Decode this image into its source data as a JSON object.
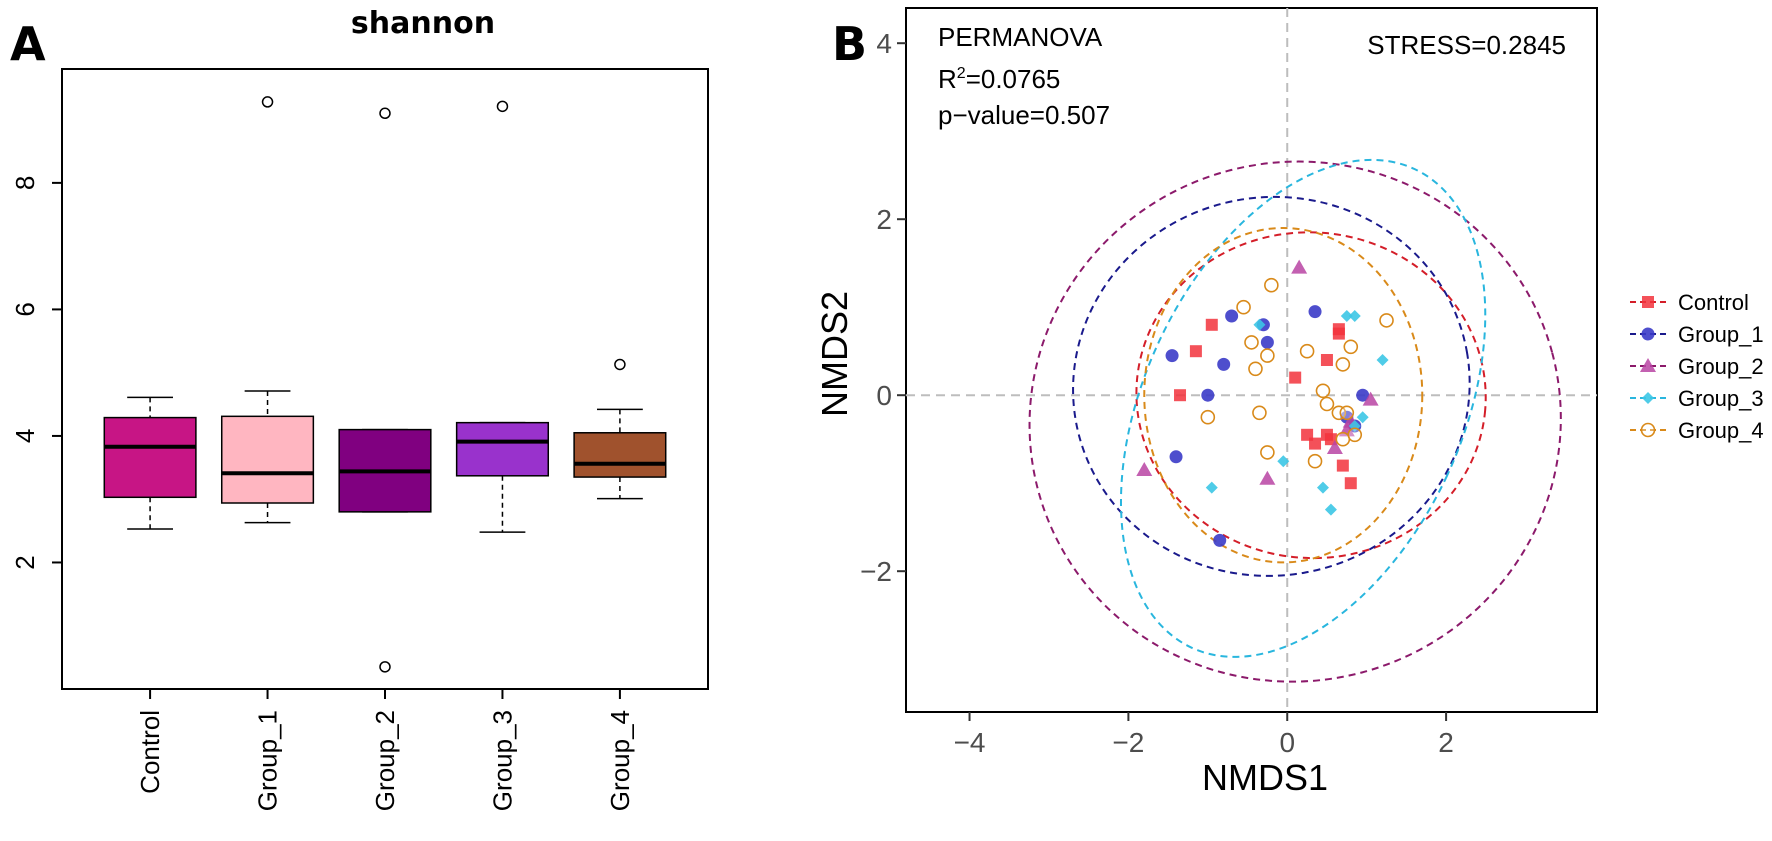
{
  "chart_data": [
    {
      "panel": "A",
      "type": "box",
      "title": "shannon",
      "xlabel": "",
      "ylabel": "",
      "ylim": [
        0,
        9.8
      ],
      "yticks": [
        2,
        4,
        6,
        8
      ],
      "yticklabels": [
        "2",
        "4",
        "6",
        "8"
      ],
      "categories": [
        "Control",
        "Group_1",
        "Group_2",
        "Group_3",
        "Group_4"
      ],
      "boxes": [
        {
          "category": "Control",
          "whisker_low": 2.53,
          "q1": 3.03,
          "median": 3.83,
          "q3": 4.29,
          "whisker_high": 4.61,
          "outliers": [],
          "color": "#c71585"
        },
        {
          "category": "Group_1",
          "whisker_low": 2.63,
          "q1": 2.94,
          "median": 3.41,
          "q3": 4.31,
          "whisker_high": 4.71,
          "outliers": [
            9.28
          ],
          "color": "#ffb6c1"
        },
        {
          "category": "Group_2",
          "whisker_low": 2.8,
          "q1": 2.8,
          "median": 3.44,
          "q3": 4.1,
          "whisker_high": 4.1,
          "outliers": [
            9.1,
            0.35
          ],
          "color": "#800080"
        },
        {
          "category": "Group_3",
          "whisker_low": 2.48,
          "q1": 3.37,
          "median": 3.91,
          "q3": 4.21,
          "whisker_high": 4.21,
          "outliers": [
            9.21
          ],
          "color": "#9932cc"
        },
        {
          "category": "Group_4",
          "whisker_low": 3.01,
          "q1": 3.35,
          "median": 3.56,
          "q3": 4.05,
          "whisker_high": 4.42,
          "outliers": [
            5.13
          ],
          "color": "#a0522d"
        }
      ]
    },
    {
      "panel": "B",
      "type": "scatter",
      "title": "",
      "xlabel": "NMDS1",
      "ylabel": "NMDS2",
      "xlim": [
        -4.8,
        3.9
      ],
      "ylim": [
        -3.6,
        4.4
      ],
      "xticks": [
        -4,
        -2,
        0,
        2
      ],
      "xticklabels": [
        "−4",
        "−2",
        "0",
        "2"
      ],
      "yticks": [
        -2,
        0,
        2,
        4
      ],
      "yticklabels": [
        "−2",
        "0",
        "2",
        "4"
      ],
      "annotations": {
        "permanova": "PERMANOVA",
        "r2_prefix": "R",
        "r2_sup": "2",
        "r2_value": "=0.0765",
        "pvalue": "p−value=0.507",
        "stress": "STRESS=0.2845"
      },
      "legend_position": "right",
      "series": [
        {
          "name": "Control",
          "color": "#f2323c",
          "marker": "square",
          "points": [
            [
              -1.35,
              0
            ],
            [
              -1.15,
              0.5
            ],
            [
              -0.95,
              0.8
            ],
            [
              0.1,
              0.2
            ],
            [
              0.25,
              -0.45
            ],
            [
              0.35,
              -0.55
            ],
            [
              0.5,
              0.4
            ],
            [
              0.65,
              0.7
            ],
            [
              0.65,
              0.75
            ],
            [
              0.5,
              -0.45
            ],
            [
              0.7,
              -0.8
            ],
            [
              0.8,
              -1.0
            ],
            [
              0.55,
              -0.5
            ]
          ]
        },
        {
          "name": "Group_1",
          "color": "#3b3bc8",
          "marker": "circle",
          "points": [
            [
              -1.45,
              0.45
            ],
            [
              -1.4,
              -0.7
            ],
            [
              -1.0,
              0
            ],
            [
              -0.85,
              -1.65
            ],
            [
              -0.8,
              0.35
            ],
            [
              -0.7,
              0.9
            ],
            [
              -0.3,
              0.8
            ],
            [
              -0.25,
              0.6
            ],
            [
              0.35,
              0.95
            ],
            [
              0.75,
              -0.25
            ],
            [
              0.85,
              -0.35
            ],
            [
              0.95,
              0
            ]
          ]
        },
        {
          "name": "Group_2",
          "color": "#b944a3",
          "marker": "triangle",
          "points": [
            [
              -1.8,
              -0.85
            ],
            [
              -0.25,
              -0.95
            ],
            [
              0.15,
              1.45
            ],
            [
              0.6,
              -0.6
            ],
            [
              0.75,
              -0.4
            ],
            [
              0.8,
              -0.3
            ],
            [
              1.05,
              -0.05
            ]
          ]
        },
        {
          "name": "Group_3",
          "color": "#3cc7e6",
          "marker": "diamond",
          "points": [
            [
              -0.95,
              -1.05
            ],
            [
              -0.35,
              0.8
            ],
            [
              -0.05,
              -0.75
            ],
            [
              0.45,
              -1.05
            ],
            [
              0.55,
              -1.3
            ],
            [
              0.75,
              0.9
            ],
            [
              0.85,
              0.9
            ],
            [
              0.85,
              -0.35
            ],
            [
              0.95,
              -0.25
            ],
            [
              1.2,
              0.4
            ]
          ]
        },
        {
          "name": "Group_4",
          "color": "#d98a1a",
          "marker": "open-circle",
          "points": [
            [
              -1.0,
              -0.25
            ],
            [
              -0.55,
              1.0
            ],
            [
              -0.45,
              0.6
            ],
            [
              -0.4,
              0.3
            ],
            [
              -0.35,
              -0.2
            ],
            [
              -0.25,
              -0.65
            ],
            [
              -0.25,
              0.45
            ],
            [
              -0.2,
              1.25
            ],
            [
              0.45,
              0.05
            ],
            [
              0.5,
              -0.1
            ],
            [
              0.65,
              -0.2
            ],
            [
              0.7,
              -0.5
            ],
            [
              0.7,
              0.35
            ],
            [
              0.75,
              -0.2
            ],
            [
              0.8,
              0.55
            ],
            [
              0.85,
              -0.45
            ],
            [
              0.35,
              -0.75
            ],
            [
              0.25,
              0.5
            ],
            [
              1.25,
              0.85
            ]
          ]
        }
      ],
      "ellipses": [
        {
          "series": "Control",
          "color": "#d41e29",
          "cx": 0.3,
          "cy": 0.0,
          "rx": 2.2,
          "ry": 1.85,
          "angle": -5
        },
        {
          "series": "Group_1",
          "color": "#1a1a8c",
          "cx": -0.2,
          "cy": 0.1,
          "rx": 2.5,
          "ry": 2.15,
          "angle": 10
        },
        {
          "series": "Group_2",
          "color": "#8c1a6b",
          "cx": 0.1,
          "cy": -0.3,
          "rx": 3.35,
          "ry": 2.95,
          "angle": 15
        },
        {
          "series": "Group_3",
          "color": "#29b6de",
          "cx": 0.2,
          "cy": -0.15,
          "rx": 2.0,
          "ry": 3.0,
          "angle": -25
        },
        {
          "series": "Group_4",
          "color": "#d98a1a",
          "cx": -0.05,
          "cy": 0.0,
          "rx": 1.75,
          "ry": 1.9,
          "angle": 0
        }
      ]
    }
  ],
  "panels": {
    "a_label": "A",
    "b_label": "B"
  }
}
